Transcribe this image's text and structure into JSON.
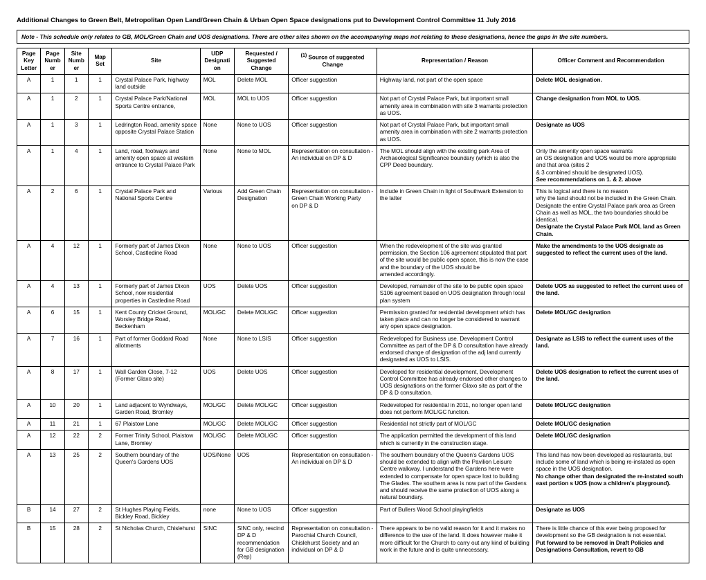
{
  "title": "Additional Changes to Green Belt, Metropolitan Open Land/Green Chain & Urban Open Space designations put to Development Control Committee 11 July 2016",
  "note": "Note - This schedule only relates to GB, MOL/Green Chain and UOS designations. There are other sites shown on the accompanying maps not relating to these designations, hence the gaps in the site numbers.",
  "headers": {
    "key": "Page Key Letter",
    "pnum": "Page Number",
    "snum": "Site Number",
    "mset": "Map Set",
    "site": "Site",
    "udp": "UDP Designation",
    "req": "Requested / Suggested Change",
    "src_sup": "(1)",
    "src": " Source of suggested Change",
    "rep": "Representation / Reason",
    "off": "Officer Comment and Recommendation"
  },
  "rows": [
    {
      "key": "A",
      "pnum": "1",
      "snum": "1",
      "mset": "1",
      "site": "Crystal Palace Park, highway land outside",
      "udp": "MOL",
      "req": "Delete MOL",
      "src": "Officer suggestion",
      "rep": "Highway land, not part of the open space",
      "off": "Delete MOL designation.",
      "off_bold": true
    },
    {
      "key": "A",
      "pnum": "1",
      "snum": "2",
      "mset": "1",
      "site": "Crystal Palace Park/National Sports Centre entrance,",
      "udp": "MOL",
      "req": "MOL to UOS",
      "src": "Officer suggestion",
      "rep": "Not part of Crystal Palace Park, but important small amenity area in combination with site 3 warrants protection as UOS.",
      "off": "Change designation from MOL to UOS.",
      "off_bold": true
    },
    {
      "key": "A",
      "pnum": "1",
      "snum": "3",
      "mset": "1",
      "site": "Ledrington Road, amenity space opposite Crystal Palace Station",
      "udp": "None",
      "req": "None to UOS",
      "src": "Officer suggestion",
      "rep": "Not part of Crystal Palace Park, but important small amenity area in combination with site 2 warrants protection as UOS.",
      "off": "Designate as UOS",
      "off_bold": true
    },
    {
      "key": "A",
      "pnum": "1",
      "snum": "4",
      "mset": "1",
      "site": "Land, road, footways and amenity open space at western entrance to Crystal Palace Park",
      "udp": "None",
      "req": "None to MOL",
      "src": "Representation on consultation - An individual  on DP & D",
      "rep": "The MOL should align with the existing park Area of Archaeological Significance boundary (which is also the CPP Deed boundary.",
      "off_html": "Only the amenity open space warrants<br>an OS designation and UOS would be more appropriate and that area (sites 2<br>& 3 combined should be designated UOS).<br><span class='b'>See recommendations on 1. & 2. above</span>"
    },
    {
      "key": "A",
      "pnum": "2",
      "snum": "6",
      "mset": "1",
      "site": "Crystal Palace Park and National Sports Centre",
      "udp": "Various",
      "req": "Add Green Chain Designation",
      "src": "Representation on consultation - Green Chain Working Party<br>on DP & D",
      "rep": "Include in Green Chain in light of Southwark Extension to the latter",
      "off_html": "This is logical and there is no reason<br>why the land should not be included in the Green Chain. Designate the entire Crystal Palace park area as Green Chain as well as MOL, the two boundaries should be identical.<br><span class='b'>Designate the Crystal Palace Park MOL land as Green Chain.</span>"
    },
    {
      "key": "A",
      "pnum": "4",
      "snum": "12",
      "mset": "1",
      "site": "Formerly part of James Dixon School, Castledine Road",
      "udp": "None",
      "req": "None to UOS",
      "src": "Officer suggestion",
      "rep": "When the redevelopment of the site was granted permission, the Section 106 agreement stipulated that part of the site would be public open space, this is now the case and the boundary of the UOS should be<br>amended accordingly.",
      "off": "Make the amendments to the UOS designate as suggested to reflect the current uses of the land.",
      "off_bold": true
    },
    {
      "key": "A",
      "pnum": "4",
      "snum": "13",
      "mset": "1",
      "site": "Formerly part of James Dixon School, now residential properties in Castledine Road",
      "udp": "UOS",
      "req": "Delete UOS",
      "src": "Officer suggestion",
      "rep": "Developed, remainder of the site to be public open space S106 agreement based on UOS designation through local plan system",
      "off": "Delete UOS as suggested to reflect the current uses of the land.",
      "off_bold": true
    },
    {
      "key": "A",
      "pnum": "6",
      "snum": "15",
      "mset": "1",
      "site": "Kent County Cricket Ground, Worsley Bridge Road, Beckenham",
      "udp": "MOL/GC",
      "req": "Delete MOL/GC",
      "src": "Officer suggestion",
      "rep": "Permission granted for residential development which has taken place and can no longer be considered to warrant any open space designation.",
      "off": "Delete MOL/GC designation",
      "off_bold": true
    },
    {
      "key": "A",
      "pnum": "7",
      "snum": "16",
      "mset": "1",
      "site": "Part of former Goddard Road allotments",
      "udp": "None",
      "req": "None to LSIS",
      "src": "Officer suggestion",
      "rep": "Redeveloped for Business use. Development Control Committee as part of the DP & D consultation have already endorsed change of designation of the adj land currently designated as UOS to LSIS.",
      "off": "Designate as LSIS to reflect the current uses of the land.",
      "off_bold": true
    },
    {
      "key": "A",
      "pnum": "8",
      "snum": "17",
      "mset": "1",
      "site": "Wall Garden Close, 7-12 (Former Glaxo site)",
      "udp": "UOS",
      "req": "Delete UOS",
      "src": "Officer suggestion",
      "rep": "Developed for residential development, Development Control Committee has already endorsed other changes to UOS designations on the former Glaxo site as part of the DP & D consultation.",
      "off": "Delete UOS designation to reflect the current uses of the land.",
      "off_bold": true
    },
    {
      "key": "A",
      "pnum": "10",
      "snum": "20",
      "mset": "1",
      "site": "Land adjacent to Wyndways, Garden Road, Bromley",
      "udp": "MOL/GC",
      "req": "Delete MOL/GC",
      "src": "Officer suggestion",
      "rep": "Redeveloped for residential in 2011, no longer open land does not perform MOL/GC function.",
      "off": "Delete MOL/GC designation",
      "off_bold": true
    },
    {
      "key": "A",
      "pnum": "11",
      "snum": "21",
      "mset": "1",
      "site": "67 Plaistow Lane",
      "udp": "MOL/GC",
      "req": "Delete MOL/GC",
      "src": "Officer suggestion",
      "rep": "Residential not strictly part of MOL/GC",
      "off": "Delete MOL/GC designation",
      "off_bold": true
    },
    {
      "key": "A",
      "pnum": "12",
      "snum": "22",
      "mset": "2",
      "site": "Former Trinity School, Plaistow Lane, Bromley",
      "udp": "MOL/GC",
      "req": "Delete MOL/GC",
      "src": "Officer suggestion",
      "rep": "The application permitted the development of this land which is currently in the construction stage.",
      "off": "Delete MOL/GC designation",
      "off_bold": true
    },
    {
      "key": "A",
      "pnum": "13",
      "snum": "25",
      "mset": "2",
      "site": "Southern boundary of the Queen's Gardens UOS",
      "udp": "UOS/None",
      "req": "UOS",
      "src": "Representation on consultation - An individual on DP & D",
      "rep": "The southern boundary of the Queen's Gardens UOS should be extended to align with the Pavilion Leisure Centre walkway. I understand the Gardens here were extended to compensate for open space lost to building The Glades. The southern area is now part of the Gardens and should receive the same protection of UOS along a natural boundary.",
      "off_html": "This land has now been developed as restaurants, but include some of land which is being re-instated as open space in the UOS designation.<br><span class='b'>No change other than designated the re-instated south east portion s UOS (now a children's playground).</span>"
    },
    {
      "key": "B",
      "pnum": "14",
      "snum": "27",
      "mset": "2",
      "site": "St Hughes Playing Fields, Bickley Road, Bickley",
      "udp": "none",
      "req": "None to UOS",
      "src": "Officer suggestion",
      "rep": "Part of Bullers Wood School playingfields",
      "off": "Designate as UOS",
      "off_bold": true
    },
    {
      "key": "B",
      "pnum": "15",
      "snum": "28",
      "mset": "2",
      "site": "St Nicholas Church, Chislehurst",
      "udp": "SINC",
      "req": "SINC only, rescind DP & D recommendation for GB designation (Rep)",
      "src": "Representation on consultation - Parochial Church Council, Chislehurst Society and an individual on DP & D",
      "rep": "There appears to be no valid reason for it and it makes no difference to the use of the land.  It does however make it more difficult for the Church to carry out any kind of building work in the future and is quite unnecessary.",
      "off_html": "There is little chance of this ever being proposed for development so the GB designation is not essential.<br><span class='b'>Put forward to be removed in Draft Policies and Designations Consultation, revert to GB</span>"
    }
  ]
}
